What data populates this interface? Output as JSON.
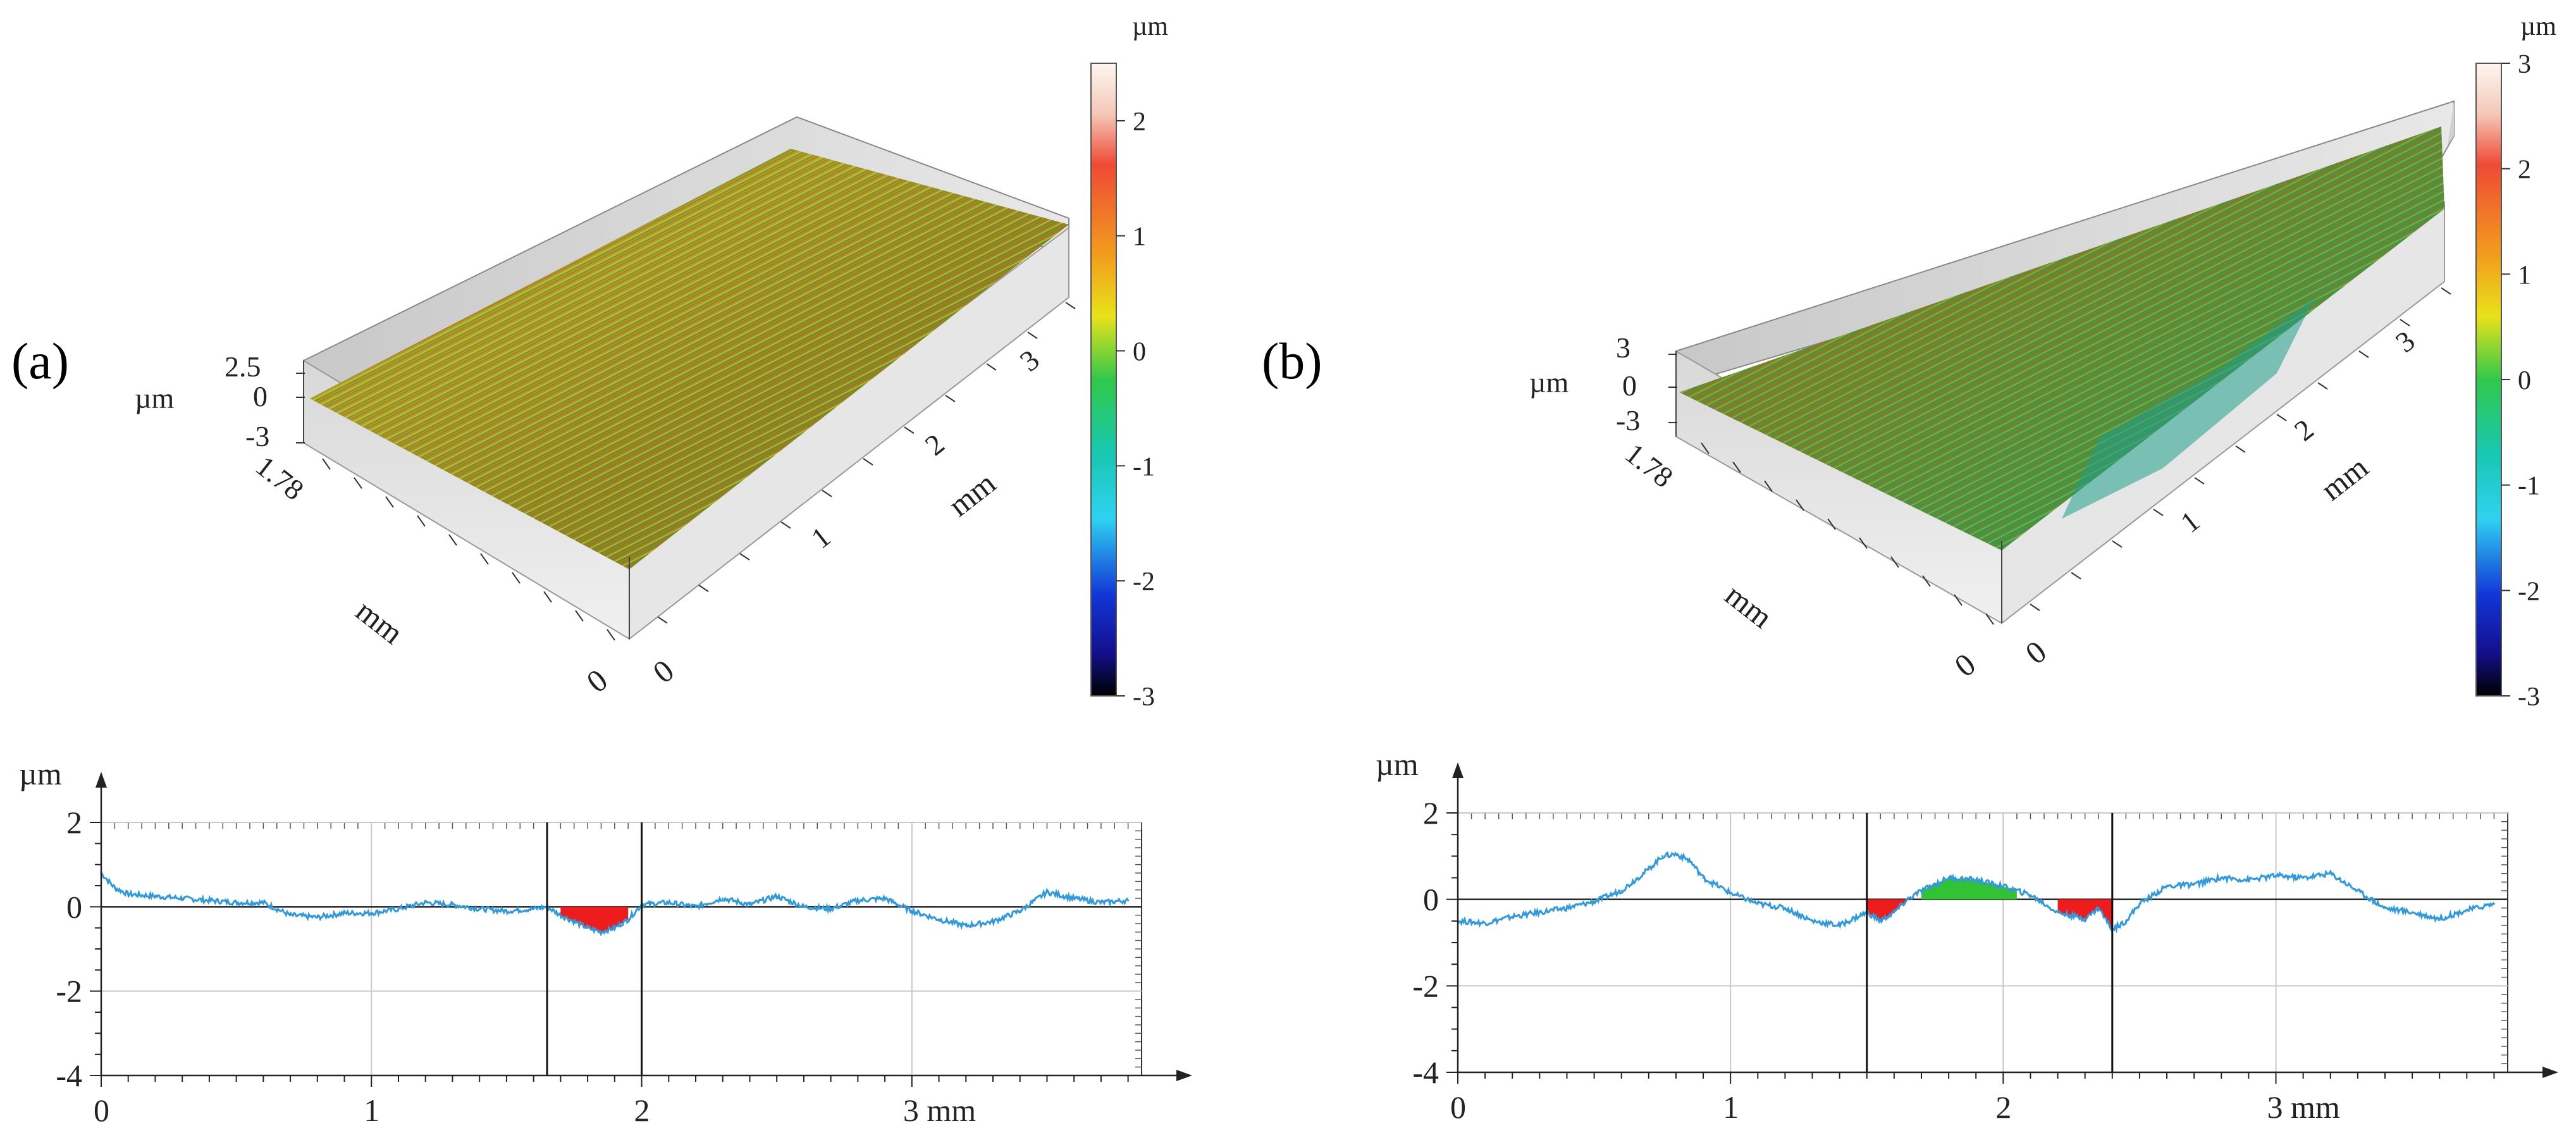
{
  "panels": [
    {
      "label": "(a)",
      "surface": {
        "unit": "µm",
        "z_ticks": [
          "2.5",
          "0",
          "-3"
        ],
        "y_extent_label": "1.78",
        "y_unit": "mm",
        "x_ticks": [
          "1",
          "2",
          "3"
        ],
        "x_unit": "mm",
        "origin_labels": [
          "0",
          "0"
        ]
      },
      "colorbar": {
        "unit": "µm",
        "min": -3,
        "max": 2.5,
        "ticks": [
          "2",
          "1",
          "0",
          "-1",
          "-2",
          "-3"
        ]
      }
    },
    {
      "label": "(b)",
      "surface": {
        "unit": "µm",
        "z_ticks": [
          "3",
          "0",
          "-3"
        ],
        "y_extent_label": "1.78",
        "y_unit": "mm",
        "x_ticks": [
          "1",
          "2",
          "3"
        ],
        "x_unit": "mm",
        "origin_labels": [
          "0",
          "0"
        ]
      },
      "colorbar": {
        "unit": "µm",
        "min": -3,
        "max": 3,
        "ticks": [
          "3",
          "2",
          "1",
          "0",
          "-1",
          "-2",
          "-3"
        ]
      }
    }
  ],
  "colors": {
    "profile_line": "#2f9ae0",
    "depression_fill": "#ee1c1c",
    "peak_fill": "#33c233",
    "grid": "#c8c8c8",
    "axis": "#000000"
  },
  "chart_data": [
    {
      "type": "line",
      "panel": "(a)",
      "ylabel": "µm",
      "xlabel": "mm",
      "x_tick_labels": [
        "0",
        "1",
        "2",
        "3 mm"
      ],
      "y_tick_labels": [
        "2",
        "0",
        "-2",
        "-4"
      ],
      "xlim": [
        0,
        3.85
      ],
      "ylim": [
        -4,
        2
      ],
      "grid": true,
      "cursors": [
        1.65,
        2.0
      ],
      "series": [
        {
          "x": [
            0,
            0.05,
            0.1,
            0.2,
            0.3,
            0.4,
            0.5,
            0.6,
            0.7,
            0.8,
            0.9,
            1.0,
            1.1,
            1.2,
            1.3,
            1.4,
            1.5,
            1.6,
            1.65,
            1.7,
            1.75,
            1.8,
            1.85,
            1.9,
            1.95,
            2.0,
            2.1,
            2.2,
            2.3,
            2.4,
            2.5,
            2.6,
            2.7,
            2.8,
            2.9,
            3.0,
            3.1,
            3.2,
            3.3,
            3.4,
            3.5,
            3.6,
            3.7,
            3.8
          ],
          "y": [
            0.8,
            0.45,
            0.3,
            0.25,
            0.2,
            0.15,
            0.1,
            0.1,
            -0.2,
            -0.25,
            -0.15,
            -0.15,
            -0.05,
            0.1,
            0.05,
            -0.05,
            -0.1,
            -0.05,
            0.0,
            -0.2,
            -0.35,
            -0.5,
            -0.6,
            -0.5,
            -0.3,
            0.05,
            0.1,
            0.0,
            0.2,
            0.05,
            0.25,
            0.0,
            -0.05,
            0.15,
            0.2,
            -0.1,
            -0.3,
            -0.45,
            -0.35,
            -0.1,
            0.35,
            0.2,
            0.1,
            0.15
          ]
        }
      ],
      "shaded_regions": [
        {
          "x": [
            1.7,
            1.95
          ],
          "kind": "below_zero"
        }
      ]
    },
    {
      "type": "line",
      "panel": "(b)",
      "ylabel": "µm",
      "xlabel": "mm",
      "x_tick_labels": [
        "0",
        "1",
        "2",
        "3 mm"
      ],
      "y_tick_labels": [
        "2",
        "0",
        "-2",
        "-4"
      ],
      "xlim": [
        0,
        3.85
      ],
      "ylim": [
        -4,
        2
      ],
      "grid": true,
      "cursors": [
        1.5,
        2.4
      ],
      "series": [
        {
          "x": [
            0,
            0.1,
            0.2,
            0.3,
            0.4,
            0.5,
            0.6,
            0.7,
            0.75,
            0.8,
            0.85,
            0.9,
            1.0,
            1.1,
            1.2,
            1.3,
            1.4,
            1.5,
            1.55,
            1.6,
            1.65,
            1.7,
            1.8,
            1.9,
            2.0,
            2.1,
            2.2,
            2.3,
            2.35,
            2.4,
            2.45,
            2.5,
            2.6,
            2.7,
            2.8,
            2.9,
            3.0,
            3.1,
            3.2,
            3.3,
            3.4,
            3.5,
            3.6,
            3.7,
            3.8
          ],
          "y": [
            -0.5,
            -0.55,
            -0.4,
            -0.3,
            -0.2,
            -0.05,
            0.2,
            0.7,
            1.0,
            1.05,
            0.9,
            0.5,
            0.15,
            -0.1,
            -0.2,
            -0.5,
            -0.6,
            -0.3,
            -0.5,
            -0.3,
            0.0,
            0.2,
            0.5,
            0.45,
            0.3,
            0.1,
            -0.3,
            -0.45,
            -0.2,
            -0.7,
            -0.5,
            -0.1,
            0.3,
            0.35,
            0.5,
            0.45,
            0.55,
            0.5,
            0.6,
            0.2,
            -0.2,
            -0.3,
            -0.45,
            -0.25,
            -0.1
          ]
        }
      ],
      "shaded_regions": [
        {
          "x": [
            1.5,
            1.65
          ],
          "kind": "below_zero"
        },
        {
          "x": [
            1.7,
            2.05
          ],
          "kind": "above_zero"
        },
        {
          "x": [
            2.2,
            2.4
          ],
          "kind": "below_zero"
        }
      ]
    }
  ]
}
